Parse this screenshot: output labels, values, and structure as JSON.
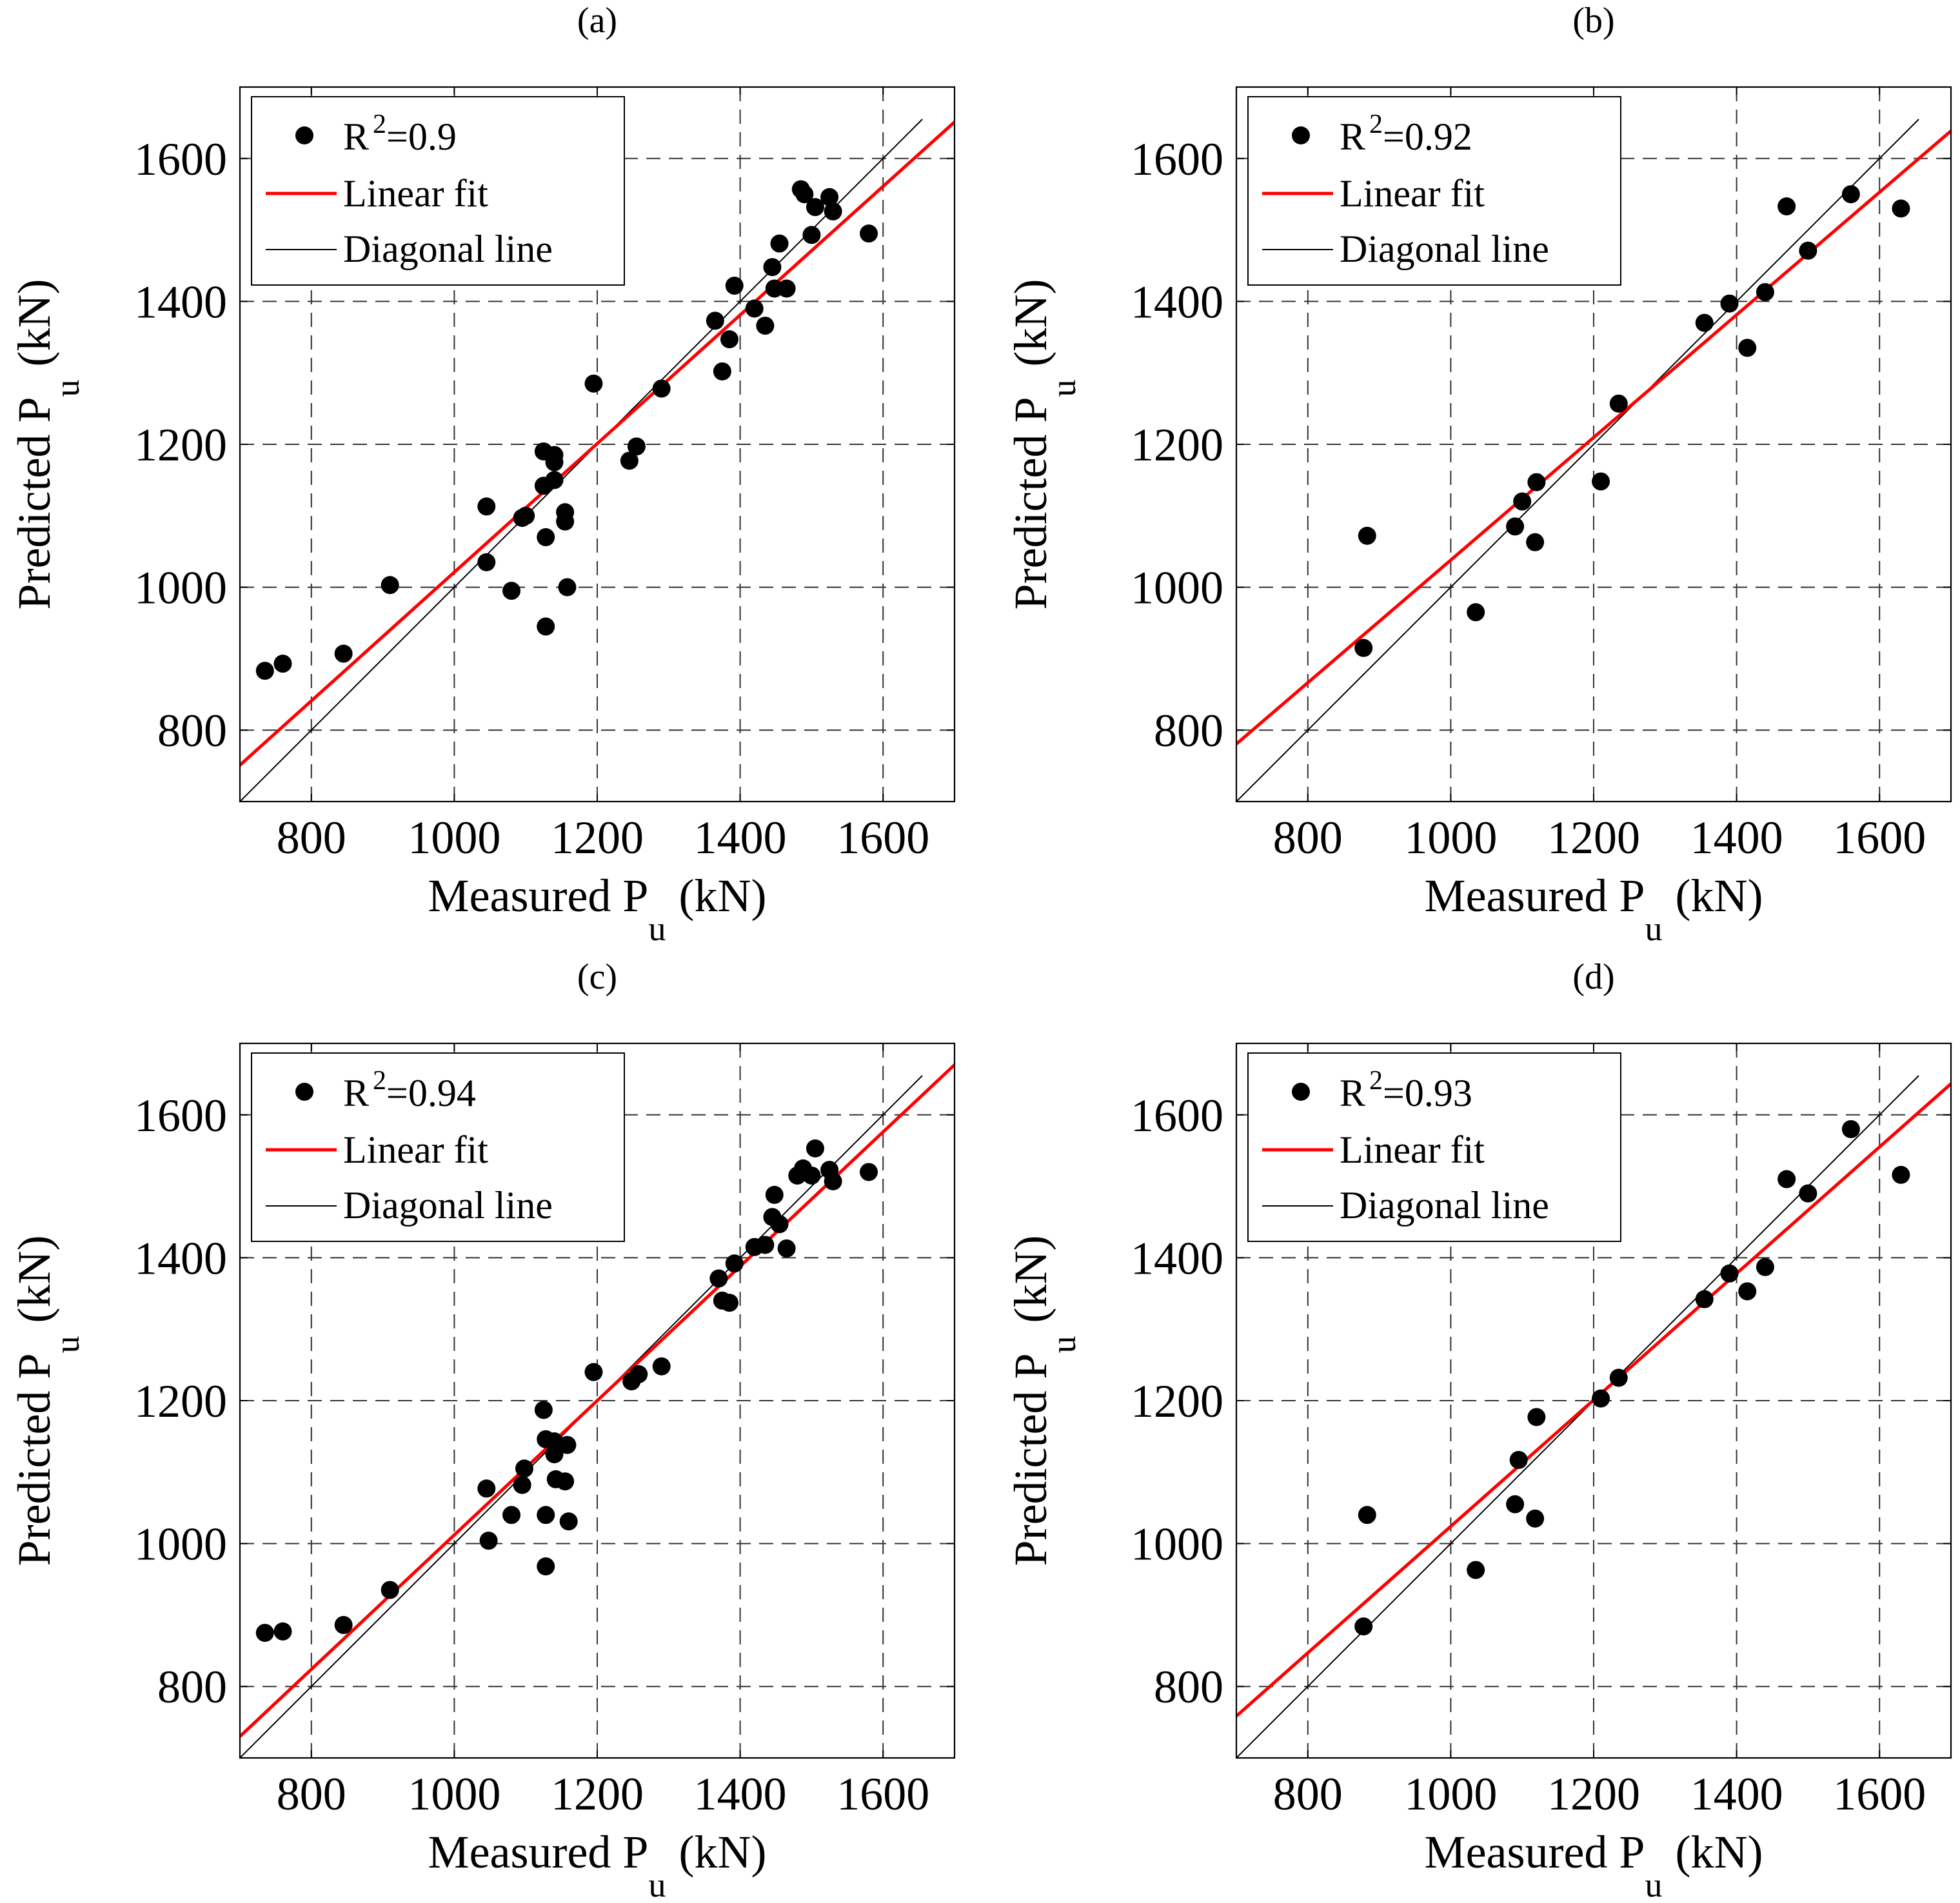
{
  "colors": {
    "fit": "#ff0000",
    "diagonal": "#000000",
    "points": "#000000",
    "grid": "#333333"
  },
  "chart_data": [
    {
      "type": "scatter",
      "title": "(a)",
      "xlabel_main": "Measured P",
      "xlabel_sub": "u",
      "xlabel_unit": "(kN)",
      "ylabel_main": "Predicted P",
      "ylabel_sub": "u",
      "ylabel_unit": "(kN)",
      "xlim": [
        700,
        1700
      ],
      "ylim": [
        700,
        1700
      ],
      "xticks": [
        800,
        1000,
        1200,
        1400,
        1600
      ],
      "yticks": [
        800,
        1000,
        1200,
        1400,
        1600
      ],
      "grid": true,
      "legend_position": "top-left",
      "legend": {
        "r2_label": "R",
        "r2_sup": "2",
        "r2_value": "=0.9",
        "fit_label": "Linear fit",
        "diag_label": "Diagonal line"
      },
      "fit": {
        "slope": 0.9,
        "intercept": 121
      },
      "diagonal_range": [
        700,
        1655
      ],
      "points": [
        [
          735,
          883
        ],
        [
          760,
          893
        ],
        [
          845,
          907
        ],
        [
          910,
          1003
        ],
        [
          1045,
          1113
        ],
        [
          1045,
          1035
        ],
        [
          1080,
          995
        ],
        [
          1095,
          1097
        ],
        [
          1100,
          1100
        ],
        [
          1125,
          1190
        ],
        [
          1125,
          1142
        ],
        [
          1128,
          1070
        ],
        [
          1128,
          945
        ],
        [
          1140,
          1185
        ],
        [
          1140,
          1175
        ],
        [
          1140,
          1150
        ],
        [
          1155,
          1105
        ],
        [
          1155,
          1092
        ],
        [
          1158,
          1000
        ],
        [
          1195,
          1285
        ],
        [
          1245,
          1177
        ],
        [
          1255,
          1197
        ],
        [
          1290,
          1278
        ],
        [
          1365,
          1373
        ],
        [
          1375,
          1302
        ],
        [
          1385,
          1347
        ],
        [
          1392,
          1422
        ],
        [
          1420,
          1390
        ],
        [
          1435,
          1366
        ],
        [
          1445,
          1448
        ],
        [
          1448,
          1418
        ],
        [
          1455,
          1481
        ],
        [
          1465,
          1418
        ],
        [
          1485,
          1557
        ],
        [
          1490,
          1550
        ],
        [
          1500,
          1493
        ],
        [
          1505,
          1532
        ],
        [
          1525,
          1546
        ],
        [
          1530,
          1526
        ],
        [
          1580,
          1495
        ]
      ]
    },
    {
      "type": "scatter",
      "title": "(b)",
      "xlabel_main": "Measured P",
      "xlabel_sub": "u",
      "xlabel_unit": "(kN)",
      "ylabel_main": "Predicted P",
      "ylabel_sub": "u",
      "ylabel_unit": "(kN)",
      "xlim": [
        700,
        1700
      ],
      "ylim": [
        700,
        1700
      ],
      "xticks": [
        800,
        1000,
        1200,
        1400,
        1600
      ],
      "yticks": [
        800,
        1000,
        1200,
        1400,
        1600
      ],
      "grid": true,
      "legend_position": "top-left",
      "legend": {
        "r2_label": "R",
        "r2_sup": "2",
        "r2_value": "=0.92",
        "fit_label": "Linear fit",
        "diag_label": "Diagonal line"
      },
      "fit": {
        "slope": 0.858,
        "intercept": 180
      },
      "diagonal_range": [
        700,
        1655
      ],
      "points": [
        [
          878,
          915
        ],
        [
          883,
          1072
        ],
        [
          1035,
          965
        ],
        [
          1090,
          1085
        ],
        [
          1100,
          1120
        ],
        [
          1118,
          1063
        ],
        [
          1120,
          1147
        ],
        [
          1210,
          1148
        ],
        [
          1235,
          1257
        ],
        [
          1355,
          1370
        ],
        [
          1390,
          1397
        ],
        [
          1415,
          1335
        ],
        [
          1440,
          1413
        ],
        [
          1470,
          1533
        ],
        [
          1500,
          1471
        ],
        [
          1560,
          1550
        ],
        [
          1630,
          1530
        ]
      ]
    },
    {
      "type": "scatter",
      "title": "(c)",
      "xlabel_main": "Measured P",
      "xlabel_sub": "u",
      "xlabel_unit": "(kN)",
      "ylabel_main": "Predicted P",
      "ylabel_sub": "u",
      "ylabel_unit": "(kN)",
      "xlim": [
        700,
        1700
      ],
      "ylim": [
        700,
        1700
      ],
      "xticks": [
        800,
        1000,
        1200,
        1400,
        1600
      ],
      "yticks": [
        800,
        1000,
        1200,
        1400,
        1600
      ],
      "grid": true,
      "legend_position": "top-left",
      "legend": {
        "r2_label": "R",
        "r2_sup": "2",
        "r2_value": "=0.94",
        "fit_label": "Linear fit",
        "diag_label": "Diagonal line"
      },
      "fit": {
        "slope": 0.94,
        "intercept": 72
      },
      "diagonal_range": [
        700,
        1655
      ],
      "points": [
        [
          735,
          875
        ],
        [
          760,
          877
        ],
        [
          845,
          886
        ],
        [
          910,
          935
        ],
        [
          1045,
          1077
        ],
        [
          1048,
          1004
        ],
        [
          1080,
          1040
        ],
        [
          1095,
          1082
        ],
        [
          1098,
          1105
        ],
        [
          1125,
          1187
        ],
        [
          1128,
          1146
        ],
        [
          1128,
          1040
        ],
        [
          1128,
          968
        ],
        [
          1140,
          1143
        ],
        [
          1140,
          1125
        ],
        [
          1142,
          1090
        ],
        [
          1155,
          1087
        ],
        [
          1158,
          1138
        ],
        [
          1160,
          1031
        ],
        [
          1195,
          1240
        ],
        [
          1248,
          1227
        ],
        [
          1258,
          1237
        ],
        [
          1290,
          1248
        ],
        [
          1370,
          1371
        ],
        [
          1375,
          1340
        ],
        [
          1385,
          1337
        ],
        [
          1392,
          1392
        ],
        [
          1420,
          1415
        ],
        [
          1435,
          1418
        ],
        [
          1445,
          1457
        ],
        [
          1448,
          1488
        ],
        [
          1455,
          1447
        ],
        [
          1465,
          1413
        ],
        [
          1480,
          1515
        ],
        [
          1488,
          1525
        ],
        [
          1500,
          1515
        ],
        [
          1505,
          1553
        ],
        [
          1525,
          1523
        ],
        [
          1530,
          1507
        ],
        [
          1580,
          1520
        ]
      ]
    },
    {
      "type": "scatter",
      "title": "(d)",
      "xlabel_main": "Measured P",
      "xlabel_sub": "u",
      "xlabel_unit": "(kN)",
      "ylabel_main": "Predicted P",
      "ylabel_sub": "u",
      "ylabel_unit": "(kN)",
      "xlim": [
        700,
        1700
      ],
      "ylim": [
        700,
        1700
      ],
      "xticks": [
        800,
        1000,
        1200,
        1400,
        1600
      ],
      "yticks": [
        800,
        1000,
        1200,
        1400,
        1600
      ],
      "grid": true,
      "legend_position": "top-left",
      "legend": {
        "r2_label": "R",
        "r2_sup": "2",
        "r2_value": "=0.93",
        "fit_label": "Linear fit",
        "diag_label": "Diagonal line"
      },
      "fit": {
        "slope": 0.885,
        "intercept": 139
      },
      "diagonal_range": [
        700,
        1655
      ],
      "points": [
        [
          878,
          884
        ],
        [
          883,
          1040
        ],
        [
          1035,
          963
        ],
        [
          1090,
          1055
        ],
        [
          1095,
          1117
        ],
        [
          1118,
          1035
        ],
        [
          1120,
          1177
        ],
        [
          1210,
          1203
        ],
        [
          1235,
          1232
        ],
        [
          1355,
          1342
        ],
        [
          1390,
          1378
        ],
        [
          1415,
          1353
        ],
        [
          1440,
          1387
        ],
        [
          1470,
          1510
        ],
        [
          1500,
          1490
        ],
        [
          1560,
          1580
        ],
        [
          1630,
          1516
        ]
      ]
    }
  ]
}
